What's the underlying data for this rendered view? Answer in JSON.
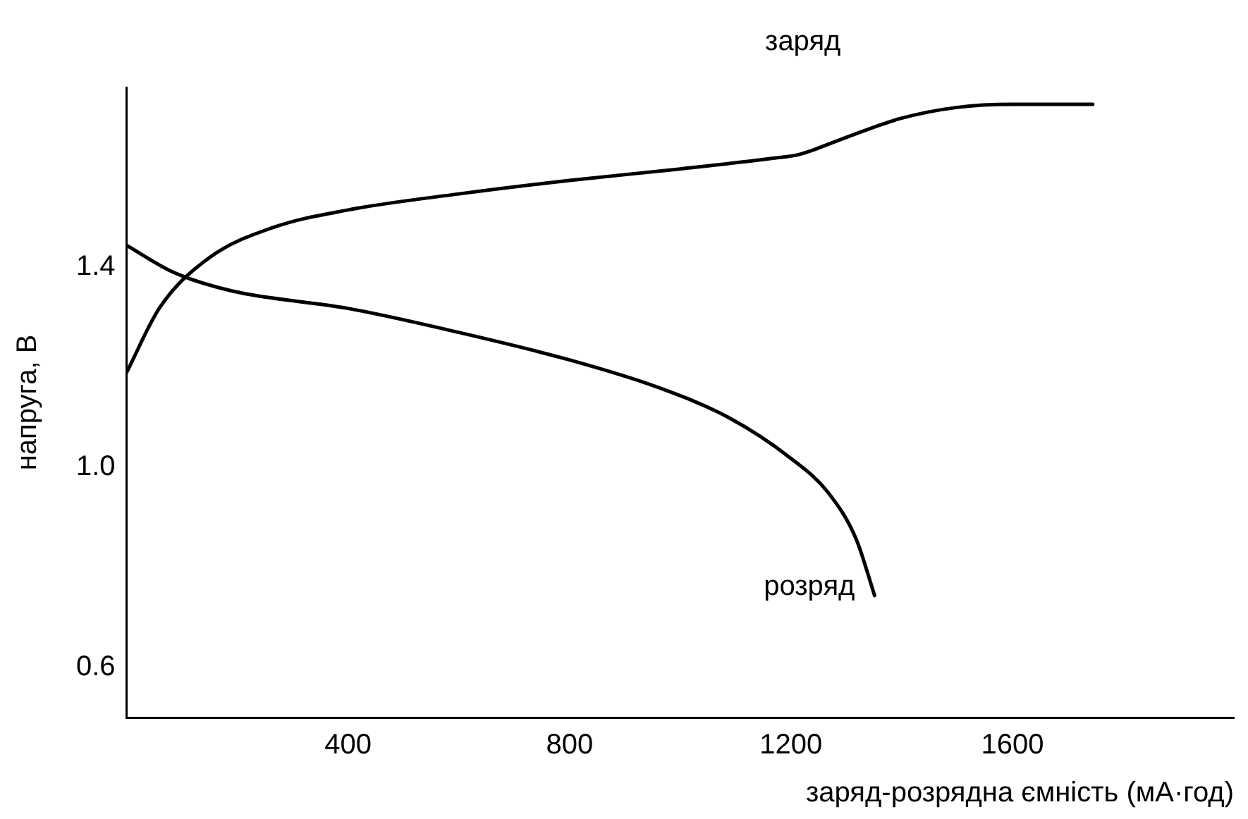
{
  "chart_data": {
    "type": "line",
    "xlabel": "заряд-розрядна ємність (мА·год)",
    "ylabel": "напруга, В",
    "xlim": [
      0,
      2000
    ],
    "ylim": [
      0.5,
      1.76
    ],
    "xticks": [
      400,
      800,
      1200,
      1600
    ],
    "yticks": [
      0.6,
      {
        "value": 1.0,
        "label": "1.0"
      },
      1.4
    ],
    "grid": false,
    "legend": false,
    "marker": "none",
    "line_style": "solid",
    "series": [
      {
        "name": "заряд",
        "color": "#000000",
        "x": [
          0,
          60,
          150,
          265,
          400,
          600,
          800,
          1000,
          1165,
          1215,
          1290,
          1395,
          1500,
          1600,
          1745
        ],
        "values": [
          1.19,
          1.32,
          1.42,
          1.48,
          1.515,
          1.547,
          1.574,
          1.597,
          1.618,
          1.626,
          1.656,
          1.697,
          1.72,
          1.726,
          1.726
        ]
      },
      {
        "name": "розряд",
        "color": "#000000",
        "x": [
          0,
          85,
          190,
          400,
          600,
          800,
          960,
          1087,
          1200,
          1267,
          1318,
          1351
        ],
        "values": [
          1.444,
          1.39,
          1.353,
          1.318,
          1.27,
          1.215,
          1.16,
          1.1,
          1.018,
          0.95,
          0.856,
          0.744
        ]
      }
    ]
  }
}
